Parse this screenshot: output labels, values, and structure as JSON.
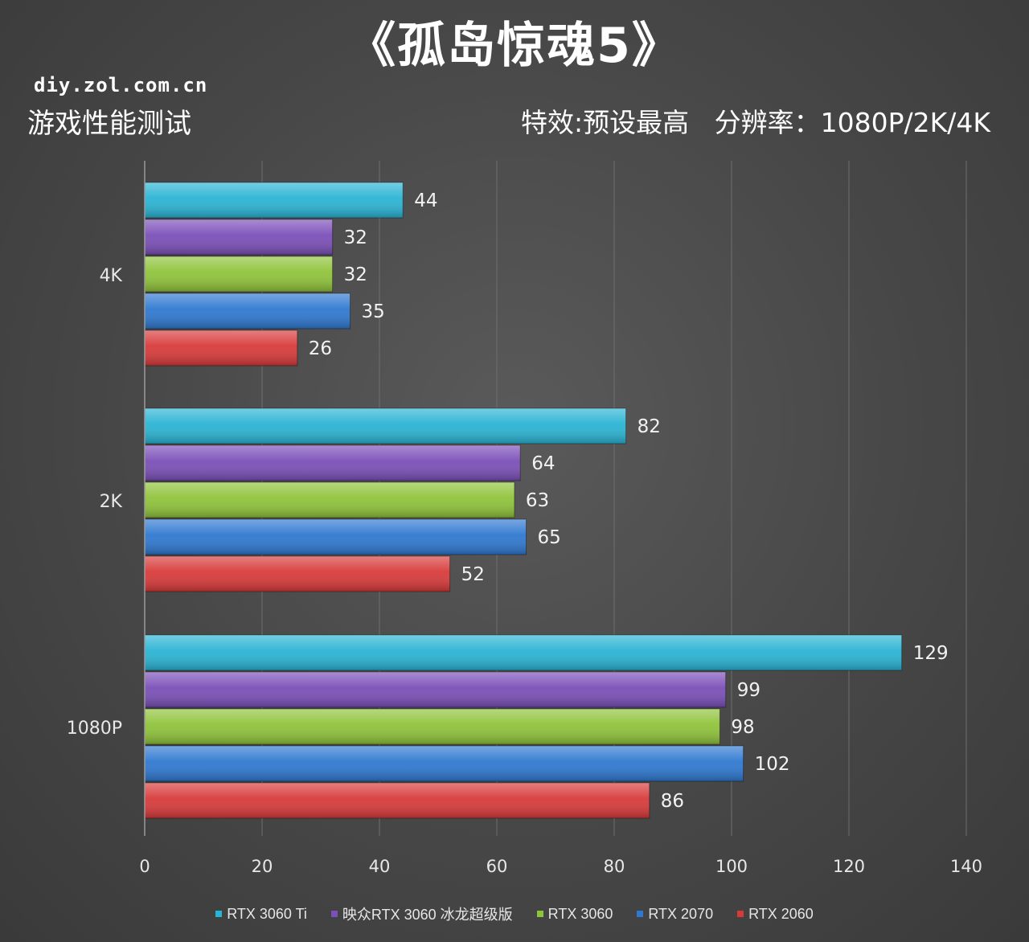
{
  "header": {
    "title": "《孤岛惊魂5》",
    "source": "diy.zol.com.cn",
    "subtitle_left": "游戏性能测试",
    "subtitle_right": "特效:预设最高   分辨率：1080P/2K/4K"
  },
  "chart_data": {
    "type": "bar",
    "orientation": "horizontal",
    "categories": [
      "4K",
      "2K",
      "1080P"
    ],
    "series": [
      {
        "name": "RTX 3060 Ti",
        "color": "#2ab4d4",
        "values": [
          44,
          82,
          129
        ]
      },
      {
        "name": "映众RTX 3060 冰龙超级版",
        "color": "#7b4fb8",
        "values": [
          32,
          64,
          99
        ]
      },
      {
        "name": "RTX 3060",
        "color": "#8fc33a",
        "values": [
          32,
          63,
          98
        ]
      },
      {
        "name": "RTX 2070",
        "color": "#2f78d0",
        "values": [
          35,
          65,
          102
        ]
      },
      {
        "name": "RTX 2060",
        "color": "#d83a3a",
        "values": [
          26,
          52,
          86
        ]
      }
    ],
    "xlim": [
      0,
      140
    ],
    "xticks": [
      0,
      20,
      40,
      60,
      80,
      100,
      120,
      140
    ],
    "grid": true,
    "legend_position": "bottom"
  }
}
